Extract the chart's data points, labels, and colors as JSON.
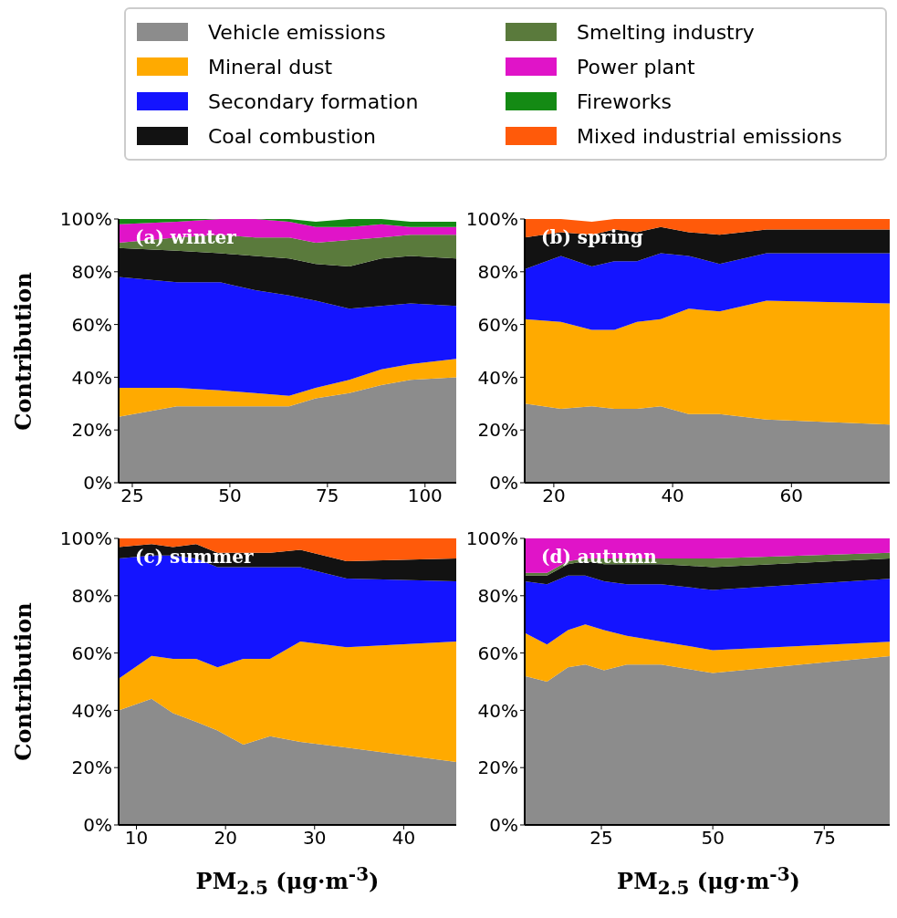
{
  "chart_data": [
    {
      "type": "area",
      "stacked": true,
      "legend": "top",
      "ylabel": "Contribution",
      "annotations": [
        "(a) winter"
      ],
      "x": [
        21.5,
        36.4,
        47.5,
        56.5,
        65.2,
        72,
        80.6,
        88.8,
        96.3,
        108
      ],
      "xlim": [
        21.5,
        108
      ],
      "xticks": [
        25,
        50,
        75,
        100
      ],
      "ylim": [
        0,
        100
      ],
      "yticks": [
        {
          "value": 0,
          "label": "0%"
        },
        {
          "value": 20,
          "label": "20%"
        },
        {
          "value": 40,
          "label": "40%"
        },
        {
          "value": 60,
          "label": "60%"
        },
        {
          "value": 80,
          "label": "80%"
        },
        {
          "value": 100,
          "label": "100%"
        }
      ],
      "series": [
        {
          "name": "Vehicle emissions",
          "color": "#8c8c8c",
          "values": [
            25,
            29,
            29,
            29,
            29,
            32,
            34,
            37,
            39,
            40
          ]
        },
        {
          "name": "Mineral dust",
          "color": "#ffaa00",
          "values": [
            11,
            7,
            6,
            5,
            4,
            4,
            5,
            6,
            6,
            7
          ]
        },
        {
          "name": "Secondary formation",
          "color": "#1414ff",
          "values": [
            42,
            40,
            41,
            39,
            38,
            33,
            27,
            24,
            23,
            20
          ]
        },
        {
          "name": "Coal combustion",
          "color": "#121212",
          "values": [
            11,
            12,
            11,
            13,
            14,
            14,
            16,
            18,
            18,
            18
          ]
        },
        {
          "name": "Smelting industry",
          "color": "#5a7a3c",
          "values": [
            2,
            5,
            7,
            7,
            8,
            8,
            10,
            8,
            8,
            9
          ]
        },
        {
          "name": "Power plant",
          "color": "#e014c8",
          "values": [
            7,
            6,
            6,
            7,
            6,
            6,
            5,
            5,
            3,
            3
          ]
        },
        {
          "name": "Fireworks",
          "color": "#148a14",
          "values": [
            2,
            1,
            0,
            0,
            1,
            2,
            3,
            2,
            2,
            2
          ]
        }
      ]
    },
    {
      "type": "area",
      "stacked": true,
      "annotations": [
        "(b) spring"
      ],
      "x": [
        15.1,
        21.2,
        26.4,
        30.2,
        34,
        38,
        42.7,
        47.9,
        55.8,
        77
      ],
      "xlim": [
        15.1,
        77
      ],
      "xticks": [
        20,
        40,
        60
      ],
      "ylim": [
        0,
        100
      ],
      "yticks": [
        {
          "value": 0,
          "label": "0%"
        },
        {
          "value": 20,
          "label": "20%"
        },
        {
          "value": 40,
          "label": "40%"
        },
        {
          "value": 60,
          "label": "60%"
        },
        {
          "value": 80,
          "label": "80%"
        },
        {
          "value": 100,
          "label": "100%"
        }
      ],
      "series": [
        {
          "name": "Vehicle emissions",
          "color": "#8c8c8c",
          "values": [
            30,
            28,
            29,
            28,
            28,
            29,
            26,
            26,
            24,
            22
          ]
        },
        {
          "name": "Mineral dust",
          "color": "#ffaa00",
          "values": [
            32,
            33,
            29,
            30,
            33,
            33,
            40,
            39,
            45,
            46
          ]
        },
        {
          "name": "Secondary formation",
          "color": "#1414ff",
          "values": [
            19,
            25,
            24,
            26,
            23,
            25,
            20,
            18,
            18,
            19
          ]
        },
        {
          "name": "Coal combustion",
          "color": "#121212",
          "values": [
            12,
            9,
            12,
            12,
            11,
            10,
            9,
            11,
            9,
            9
          ]
        },
        {
          "name": "Mixed industrial emissions",
          "color": "#ff5a0a",
          "values": [
            7,
            5,
            5,
            4,
            5,
            3,
            5,
            6,
            4,
            4
          ]
        }
      ]
    },
    {
      "type": "area",
      "stacked": true,
      "ylabel": "Contribution",
      "xlabel": "PM$_{2.5}$ (μg·m$^{-3}$)",
      "annotations": [
        "(c) summer"
      ],
      "x": [
        8,
        11.7,
        14.1,
        16.7,
        19.1,
        22,
        25,
        28.4,
        33.6,
        45.9
      ],
      "xlim": [
        8,
        45.9
      ],
      "xticks": [
        10,
        20,
        30,
        40
      ],
      "ylim": [
        0,
        100
      ],
      "yticks": [
        {
          "value": 0,
          "label": "0%"
        },
        {
          "value": 20,
          "label": "20%"
        },
        {
          "value": 40,
          "label": "40%"
        },
        {
          "value": 60,
          "label": "60%"
        },
        {
          "value": 80,
          "label": "80%"
        },
        {
          "value": 100,
          "label": "100%"
        }
      ],
      "series": [
        {
          "name": "Vehicle emissions",
          "color": "#8c8c8c",
          "values": [
            40,
            44,
            39,
            36,
            33,
            28,
            31,
            29,
            27,
            22
          ]
        },
        {
          "name": "Mineral dust",
          "color": "#ffaa00",
          "values": [
            11,
            15,
            19,
            22,
            22,
            30,
            27,
            35,
            35,
            42
          ]
        },
        {
          "name": "Secondary formation",
          "color": "#1414ff",
          "values": [
            42,
            35,
            36,
            35,
            35,
            32,
            32,
            26,
            24,
            21
          ]
        },
        {
          "name": "Coal combustion",
          "color": "#121212",
          "values": [
            4,
            4,
            3,
            5,
            5,
            5,
            5,
            6,
            6,
            8
          ]
        },
        {
          "name": "Mixed industrial emissions",
          "color": "#ff5a0a",
          "values": [
            3,
            2,
            3,
            2,
            5,
            5,
            5,
            4,
            8,
            7
          ]
        }
      ]
    },
    {
      "type": "area",
      "stacked": true,
      "xlabel": "PM$_{2.5}$ (μg·m$^{-3}$)",
      "annotations": [
        "(d) autumn"
      ],
      "x": [
        7.8,
        12.8,
        17.5,
        21.4,
        25.6,
        30.7,
        38.4,
        50,
        90.3
      ],
      "xlim": [
        7.8,
        90.3
      ],
      "xticks": [
        25,
        50,
        75
      ],
      "ylim": [
        0,
        100
      ],
      "yticks": [
        {
          "value": 0,
          "label": "0%"
        },
        {
          "value": 20,
          "label": "20%"
        },
        {
          "value": 40,
          "label": "40%"
        },
        {
          "value": 60,
          "label": "60%"
        },
        {
          "value": 80,
          "label": "80%"
        },
        {
          "value": 100,
          "label": "100%"
        }
      ],
      "series": [
        {
          "name": "Vehicle emissions",
          "color": "#8c8c8c",
          "values": [
            52,
            50,
            55,
            56,
            54,
            56,
            56,
            53,
            59
          ]
        },
        {
          "name": "Mineral dust",
          "color": "#ffaa00",
          "values": [
            15,
            13,
            13,
            14,
            14,
            10,
            8,
            8,
            5
          ]
        },
        {
          "name": "Secondary formation",
          "color": "#1414ff",
          "values": [
            18,
            21,
            19,
            17,
            17,
            18,
            20,
            21,
            22
          ]
        },
        {
          "name": "Coal combustion",
          "color": "#121212",
          "values": [
            2,
            3,
            4,
            5,
            6,
            7,
            7,
            8,
            7
          ]
        },
        {
          "name": "Smelting industry",
          "color": "#5a7a3c",
          "values": [
            1,
            1,
            1,
            1,
            2,
            2,
            2,
            3,
            2
          ]
        },
        {
          "name": "Power plant",
          "color": "#e014c8",
          "values": [
            12,
            12,
            8,
            7,
            7,
            7,
            7,
            7,
            5
          ]
        }
      ]
    }
  ]
}
